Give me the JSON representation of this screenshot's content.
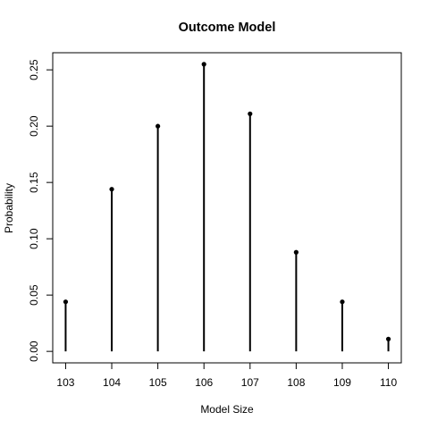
{
  "chart_data": {
    "type": "bar",
    "style": "lollipop",
    "title": "Outcome Model",
    "xlabel": "Model Size",
    "ylabel": "Probability",
    "categories": [
      "103",
      "104",
      "105",
      "106",
      "107",
      "108",
      "109",
      "110"
    ],
    "x": [
      103,
      104,
      105,
      106,
      107,
      108,
      109,
      110
    ],
    "values": [
      0.044,
      0.144,
      0.2,
      0.255,
      0.211,
      0.088,
      0.044,
      0.011
    ],
    "xlim": [
      102.72,
      110.28
    ],
    "ylim": [
      -0.0102,
      0.2652
    ],
    "yticks": [
      0.0,
      0.05,
      0.1,
      0.15,
      0.2,
      0.25
    ],
    "ytick_labels": [
      "0.00",
      "0.05",
      "0.10",
      "0.15",
      "0.20",
      "0.25"
    ],
    "xticks": [
      103,
      104,
      105,
      106,
      107,
      108,
      109,
      110
    ],
    "xtick_labels": [
      "103",
      "104",
      "105",
      "106",
      "107",
      "108",
      "109",
      "110"
    ],
    "grid": false,
    "legend": "none",
    "colors": {
      "mark": "#000000",
      "axis": "#000000"
    }
  }
}
